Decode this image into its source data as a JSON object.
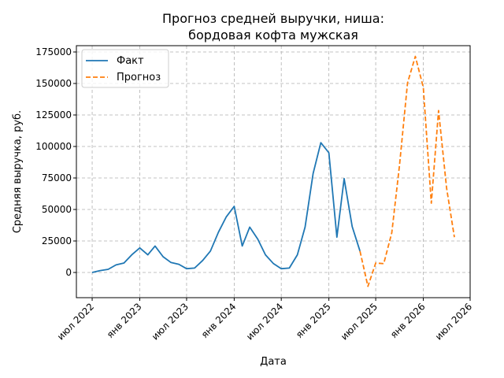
{
  "chart_data": {
    "type": "line",
    "title": "Прогноз средней выручки, ниша:\nбордовая кофта мужская",
    "title_lines": [
      "Прогноз средней выручки, ниша:",
      "бордовая кофта мужская"
    ],
    "xlabel": "Дата",
    "ylabel": "Средняя выручка, руб.",
    "x_tick_labels": [
      "июл 2022",
      "янв 2023",
      "июл 2023",
      "янв 2024",
      "июл 2024",
      "янв 2025",
      "июл 2025",
      "янв 2026",
      "июл 2026"
    ],
    "x_ticks": [
      "2022-07-01",
      "2023-01-01",
      "2023-07-01",
      "2024-01-01",
      "2024-07-01",
      "2025-01-01",
      "2025-07-01",
      "2026-01-01",
      "2026-07-01"
    ],
    "y_ticks": [
      0,
      25000,
      50000,
      75000,
      100000,
      125000,
      150000,
      175000
    ],
    "y_tick_labels": [
      "0",
      "25000",
      "50000",
      "75000",
      "100000",
      "125000",
      "150000",
      "175000"
    ],
    "xlim": [
      "2022-05-01",
      "2026-07-01"
    ],
    "ylim": [
      -20000,
      180000
    ],
    "grid": true,
    "legend": {
      "position": "top-left"
    },
    "series": [
      {
        "name": "Факт",
        "color": "#1f77b4",
        "style": "solid",
        "x": [
          "2022-07-01",
          "2022-08-01",
          "2022-09-01",
          "2022-10-01",
          "2022-11-01",
          "2022-12-01",
          "2023-01-01",
          "2023-02-01",
          "2023-03-01",
          "2023-04-01",
          "2023-05-01",
          "2023-06-01",
          "2023-07-01",
          "2023-08-01",
          "2023-09-01",
          "2023-10-01",
          "2023-11-01",
          "2023-12-01",
          "2024-01-01",
          "2024-02-01",
          "2024-03-01",
          "2024-04-01",
          "2024-05-01",
          "2024-06-01",
          "2024-07-01",
          "2024-08-01",
          "2024-09-01",
          "2024-10-01",
          "2024-11-01",
          "2024-12-01",
          "2025-01-01",
          "2025-02-01",
          "2025-03-01",
          "2025-04-01",
          "2025-05-01"
        ],
        "y": [
          0,
          1500,
          2500,
          6000,
          7500,
          14000,
          19500,
          14000,
          21000,
          12500,
          8000,
          6500,
          3000,
          3500,
          9500,
          17000,
          32000,
          44000,
          52500,
          21000,
          36000,
          26500,
          14000,
          7000,
          3000,
          3500,
          14000,
          36000,
          78500,
          103000,
          95000,
          28000,
          74500,
          36500,
          17000
        ]
      },
      {
        "name": "Прогноз",
        "color": "#ff7f0e",
        "style": "dashed",
        "x": [
          "2025-05-01",
          "2025-06-01",
          "2025-07-01",
          "2025-08-01",
          "2025-09-01",
          "2025-10-01",
          "2025-11-01",
          "2025-12-01",
          "2026-01-01",
          "2026-02-01",
          "2026-03-01",
          "2026-04-01",
          "2026-05-01"
        ],
        "y": [
          17000,
          -11000,
          7500,
          7000,
          31500,
          85000,
          150500,
          171500,
          147000,
          55000,
          128500,
          67000,
          28000
        ]
      }
    ]
  }
}
